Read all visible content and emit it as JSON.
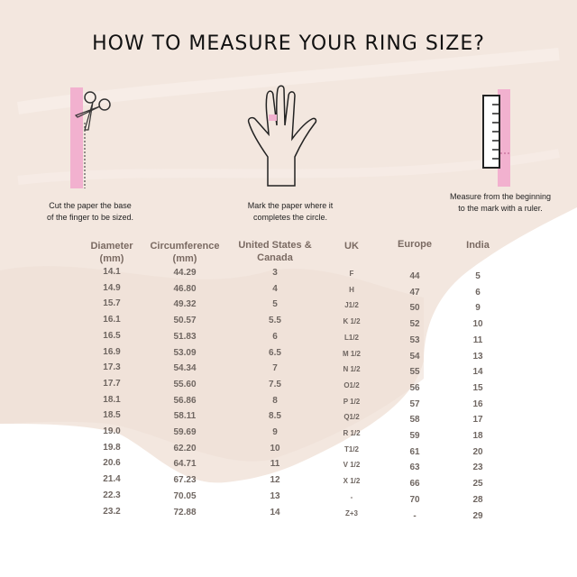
{
  "title": "HOW TO MEASURE YOUR RING SIZE?",
  "steps": [
    {
      "icon": "scissors-paper-icon",
      "caption_line1": "Cut the paper the base",
      "caption_line2": "of the finger to be sized."
    },
    {
      "icon": "hand-icon",
      "caption_line1": "Mark the paper where it",
      "caption_line2": "completes the circle."
    },
    {
      "icon": "ruler-paper-icon",
      "caption_line1": "Measure from the beginning",
      "caption_line2": "to the mark with a ruler."
    }
  ],
  "colors": {
    "accent_pink": "#f2b1cf",
    "background_beige": "#f3e7df",
    "header_text": "#7a6a62",
    "cell_text": "#6f6661"
  },
  "table": {
    "headers": {
      "diameter": [
        "Diameter",
        "(mm)"
      ],
      "circumference": [
        "Circumference",
        "(mm)"
      ],
      "us": [
        "United States &",
        "Canada"
      ],
      "uk": [
        "UK"
      ],
      "europe": [
        "Europe"
      ],
      "india": [
        "India"
      ]
    },
    "columns": {
      "diameter": [
        "14.1",
        "14.9",
        "15.7",
        "16.1",
        "16.5",
        "16.9",
        "17.3",
        "17.7",
        "18.1",
        "18.5",
        "19.0",
        "19.8",
        "20.6",
        "21.4",
        "22.3",
        "23.2"
      ],
      "circumference": [
        "44.29",
        "46.80",
        "49.32",
        "50.57",
        "51.83",
        "53.09",
        "54.34",
        "55.60",
        "56.86",
        "58.11",
        "59.69",
        "62.20",
        "64.71",
        "67.23",
        "70.05",
        "72.88"
      ],
      "us": [
        "3",
        "4",
        "5",
        "5.5",
        "6",
        "6.5",
        "7",
        "7.5",
        "8",
        "8.5",
        "9",
        "10",
        "11",
        "12",
        "13",
        "14"
      ],
      "uk": [
        "F",
        "H",
        "J1/2",
        "K 1/2",
        "L1/2",
        "M 1/2",
        "N 1/2",
        "O1/2",
        "P 1/2",
        "Q1/2",
        "R 1/2",
        "T1/2",
        "V 1/2",
        "X 1/2",
        "-",
        "Z+3"
      ],
      "europe": [
        "44",
        "47",
        "50",
        "52",
        "53",
        "54",
        "55",
        "56",
        "57",
        "58",
        "59",
        "61",
        "63",
        "66",
        "70",
        "-"
      ],
      "india": [
        "5",
        "6",
        "9",
        "10",
        "11",
        "13",
        "14",
        "15",
        "16",
        "17",
        "18",
        "20",
        "23",
        "25",
        "28",
        "29"
      ]
    }
  }
}
